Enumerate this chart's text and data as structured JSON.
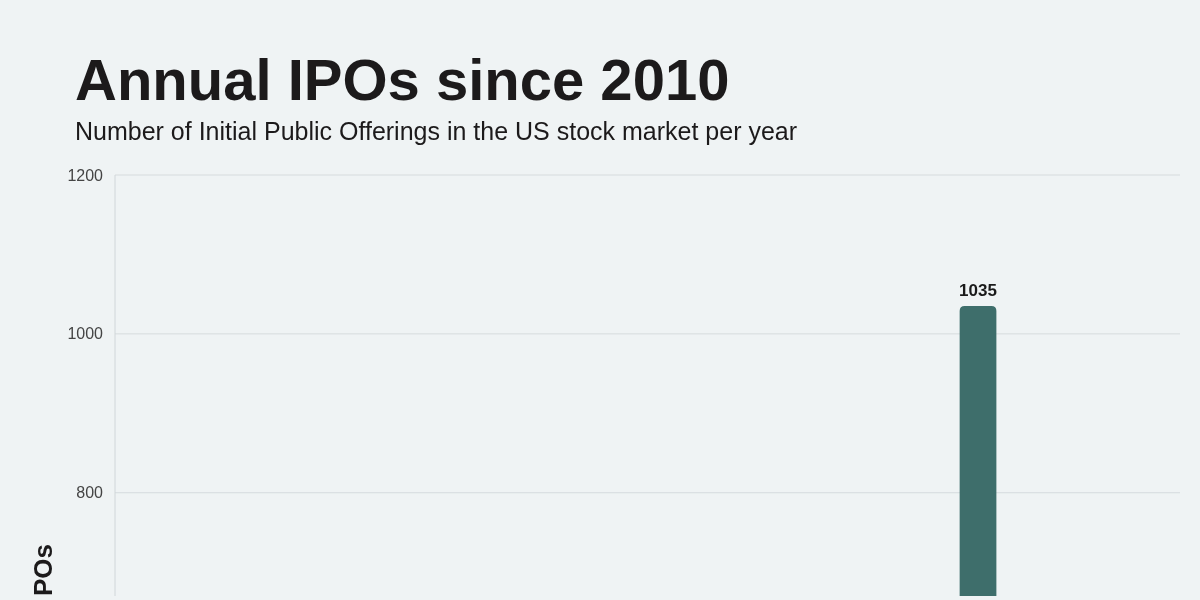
{
  "chart_data": {
    "type": "bar",
    "title": "Annual IPOs since 2010",
    "subtitle": "Number of Initial Public Offerings in the US stock market per year",
    "ylabel": "POs",
    "categories": [
      null,
      null,
      null,
      null,
      null,
      null,
      null,
      null,
      null,
      null,
      null,
      null,
      null,
      null
    ],
    "values": [
      null,
      null,
      null,
      null,
      null,
      null,
      null,
      null,
      null,
      null,
      null,
      1035,
      null,
      null
    ],
    "color": "#3e6e6b",
    "ylim": [
      670,
      1200
    ],
    "yticks": [
      800,
      1000,
      1200
    ],
    "grid": "y",
    "data_labels": true
  }
}
